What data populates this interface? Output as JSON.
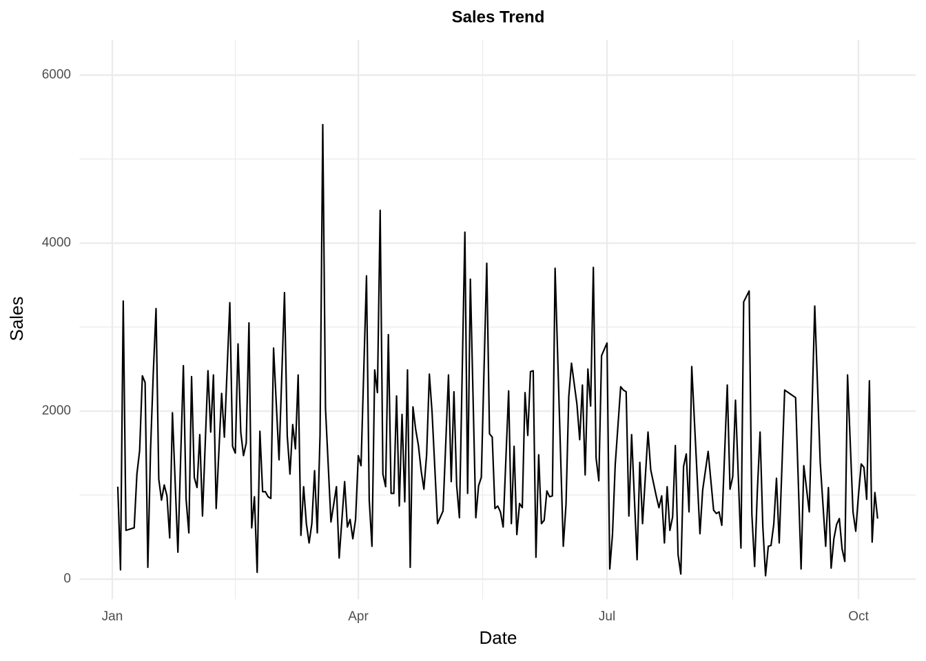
{
  "chart_data": {
    "type": "line",
    "title": "Sales Trend",
    "x_label": "Date",
    "y_label": "Sales",
    "color": "#000000",
    "x": [
      3,
      4,
      5,
      6,
      9,
      10,
      11,
      12,
      13,
      14,
      15,
      16,
      17,
      18,
      19,
      20,
      21,
      22,
      23,
      25,
      27,
      28,
      29,
      30,
      31,
      32,
      33,
      34,
      36,
      37,
      38,
      39,
      41,
      42,
      44,
      45,
      46,
      47,
      48,
      49,
      50,
      51,
      52,
      53,
      54,
      55,
      56,
      57,
      58,
      59,
      60,
      62,
      64,
      65,
      66,
      67,
      68,
      69,
      70,
      71,
      72,
      73,
      74,
      75,
      76,
      77,
      78,
      79,
      81,
      83,
      84,
      86,
      87,
      88,
      89,
      90,
      91,
      92,
      94,
      95,
      96,
      97,
      98,
      99,
      100,
      101,
      102,
      103,
      104,
      105,
      106,
      107,
      108,
      109,
      110,
      111,
      112,
      113,
      114,
      115,
      116,
      117,
      118,
      120,
      122,
      124,
      125,
      126,
      127,
      128,
      130,
      131,
      132,
      134,
      135,
      136,
      138,
      139,
      140,
      141,
      142,
      143,
      144,
      146,
      147,
      148,
      149,
      150,
      151,
      152,
      153,
      154,
      155,
      156,
      157,
      158,
      159,
      160,
      161,
      162,
      163,
      166,
      167,
      168,
      169,
      171,
      172,
      173,
      174,
      175,
      176,
      177,
      178,
      179,
      180,
      182,
      183,
      184,
      185,
      187,
      188,
      189,
      190,
      191,
      193,
      194,
      195,
      197,
      198,
      200,
      201,
      202,
      203,
      204,
      205,
      206,
      207,
      208,
      209,
      210,
      211,
      212,
      213,
      216,
      217,
      219,
      221,
      222,
      223,
      224,
      226,
      227,
      228,
      229,
      231,
      232,
      234,
      235,
      236,
      237,
      238,
      239,
      240,
      241,
      242,
      243,
      244,
      245,
      247,
      251,
      253,
      254,
      256,
      258,
      260,
      262,
      263,
      264,
      265,
      266,
      267,
      268,
      269,
      270,
      272,
      273,
      274,
      275,
      276,
      277,
      278,
      279,
      280,
      281
    ],
    "values": [
      1100,
      110,
      3310,
      580,
      610,
      1250,
      1530,
      2420,
      2340,
      140,
      1550,
      2460,
      3220,
      1190,
      940,
      1120,
      990,
      490,
      1980,
      320,
      2540,
      950,
      550,
      2410,
      1210,
      1090,
      1720,
      750,
      2480,
      1750,
      2430,
      840,
      2210,
      1690,
      3290,
      1580,
      1500,
      2800,
      1750,
      1470,
      1620,
      3050,
      610,
      980,
      80,
      1760,
      1040,
      1040,
      980,
      960,
      2750,
      1420,
      3410,
      1710,
      1250,
      1840,
      1550,
      2430,
      520,
      1100,
      660,
      430,
      660,
      1290,
      550,
      1710,
      5410,
      2030,
      680,
      1100,
      250,
      1160,
      620,
      710,
      480,
      710,
      1470,
      1350,
      3610,
      940,
      390,
      2490,
      2220,
      4390,
      1250,
      1100,
      2910,
      1020,
      1020,
      2180,
      870,
      1960,
      920,
      2490,
      140,
      2050,
      1780,
      1590,
      1290,
      1070,
      1480,
      2440,
      1980,
      660,
      810,
      2430,
      1160,
      2230,
      1110,
      730,
      4130,
      1020,
      3570,
      730,
      1110,
      1210,
      3760,
      1730,
      1690,
      840,
      870,
      800,
      620,
      2240,
      660,
      1580,
      530,
      900,
      850,
      2220,
      1710,
      2470,
      2480,
      260,
      1480,
      660,
      700,
      1050,
      980,
      990,
      3700,
      390,
      890,
      2170,
      2570,
      2080,
      1660,
      2310,
      1240,
      2500,
      2060,
      3710,
      1440,
      1170,
      2660,
      2810,
      120,
      530,
      1360,
      2290,
      2250,
      2230,
      750,
      1720,
      230,
      1390,
      660,
      1750,
      1300,
      990,
      850,
      990,
      430,
      1100,
      580,
      740,
      1590,
      290,
      60,
      1340,
      1490,
      800,
      2530,
      540,
      1060,
      1520,
      820,
      780,
      800,
      640,
      2310,
      1070,
      1220,
      2130,
      370,
      3300,
      3430,
      770,
      150,
      1050,
      1750,
      630,
      40,
      390,
      400,
      650,
      1200,
      430,
      2250,
      2160,
      120,
      1350,
      800,
      3250,
      1390,
      390,
      1090,
      130,
      480,
      650,
      720,
      360,
      210,
      2430,
      800,
      570,
      1000,
      1370,
      1330,
      950,
      2360,
      440,
      1030,
      720
    ],
    "xlim": [
      -11,
      295
    ],
    "xticks": [
      {
        "value": 1,
        "label": "Jan"
      },
      {
        "value": 91,
        "label": "Apr"
      },
      {
        "value": 182,
        "label": "Jul"
      },
      {
        "value": 274,
        "label": "Oct"
      }
    ],
    "minor_xticks": [
      46,
      136.5,
      228
    ],
    "ylim": [
      -240,
      6420
    ],
    "yticks": [
      0,
      2000,
      4000,
      6000
    ],
    "minor_yticks": [
      1000,
      3000,
      5000
    ],
    "grid": true
  }
}
